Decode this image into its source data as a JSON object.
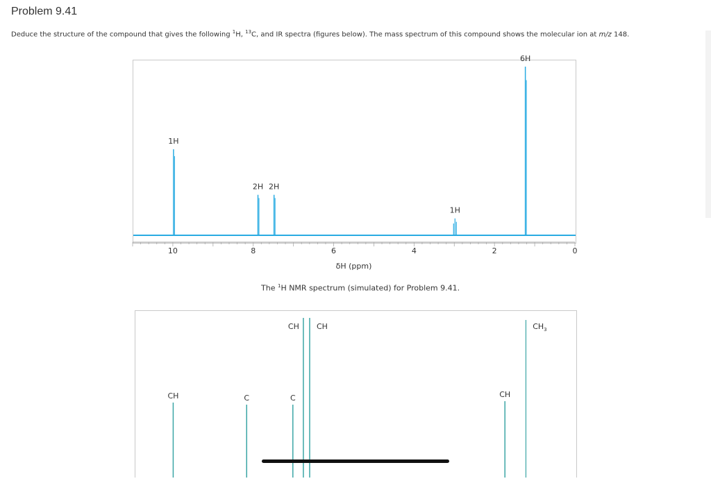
{
  "problem": {
    "title": "Problem 9.41",
    "text_before": "Deduce the structure of the compound that gives the following ",
    "h_sup": "1",
    "h_text": "H, ",
    "c_sup": "13",
    "c_text": "C, and IR spectra (figures below). The mass spectrum of this compound shows the molecular ion at ",
    "mz_label": "m/z",
    "mz_value": " 148."
  },
  "chart_data": [
    {
      "type": "line",
      "title": "",
      "xlabel": "δH (ppm)",
      "xlim": [
        11,
        0
      ],
      "x_ticks": [
        10,
        8,
        6,
        4,
        2,
        0
      ],
      "peaks": [
        {
          "ppm": 10.0,
          "label": "1H",
          "height": 0.51
        },
        {
          "ppm": 7.9,
          "label": "2H",
          "height": 0.24
        },
        {
          "ppm": 7.5,
          "label": "2H",
          "height": 0.24
        },
        {
          "ppm": 3.0,
          "label": "1H",
          "height": 0.1
        },
        {
          "ppm": 1.25,
          "label": "6H",
          "height": 1.0
        }
      ],
      "line_color": "#29abe2"
    },
    {
      "type": "bar",
      "title": "",
      "xlim": [
        210,
        0
      ],
      "peaks": [
        {
          "ppm": 192,
          "label": "CH"
        },
        {
          "ppm": 157,
          "label": "C"
        },
        {
          "ppm": 135,
          "label": "C"
        },
        {
          "ppm": 130,
          "label": "CH"
        },
        {
          "ppm": 127,
          "label": "CH"
        },
        {
          "ppm": 34,
          "label": "CH"
        },
        {
          "ppm": 24,
          "label": "CH3"
        }
      ],
      "line_color": "#3ba5a5"
    }
  ],
  "captions": {
    "hnmr_prefix": "The ",
    "hnmr_sup": "1",
    "hnmr_suffix": "H NMR spectrum (simulated) for Problem 9.41."
  }
}
